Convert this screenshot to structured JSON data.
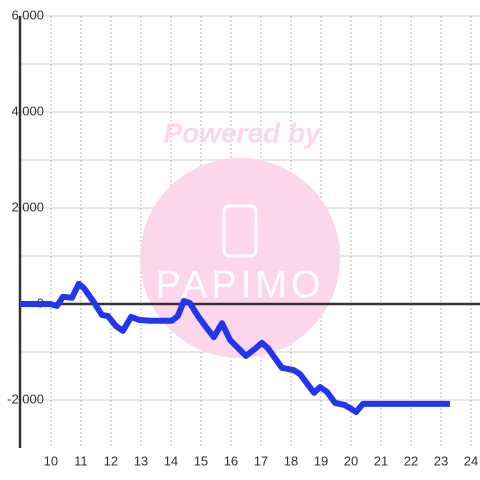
{
  "chart_data": {
    "type": "line",
    "watermark": "Powered by",
    "watermark_logo": "PAPIMO",
    "x": [
      8.97,
      9.97,
      10.2,
      10.4,
      10.7,
      10.93,
      11.1,
      11.43,
      11.7,
      11.9,
      12.17,
      12.4,
      12.67,
      12.93,
      13.3,
      14.03,
      14.23,
      14.43,
      14.63,
      14.9,
      15.17,
      15.43,
      15.7,
      15.97,
      16.5,
      16.83,
      17.03,
      17.23,
      17.7,
      18.1,
      18.3,
      18.77,
      18.97,
      19.2,
      19.47,
      19.77,
      19.97,
      20.17,
      20.4,
      23.3
    ],
    "values": [
      0,
      0,
      -40,
      150,
      130,
      420,
      330,
      40,
      -230,
      -250,
      -460,
      -560,
      -270,
      -330,
      -350,
      -350,
      -250,
      60,
      20,
      -250,
      -480,
      -690,
      -400,
      -750,
      -1080,
      -920,
      -810,
      -920,
      -1330,
      -1380,
      -1460,
      -1850,
      -1730,
      -1830,
      -2060,
      -2100,
      -2170,
      -2250,
      -2080,
      -2080
    ],
    "color": "#2236f0",
    "xlim": [
      8.97,
      24.3
    ],
    "ylim": [
      -3000,
      6000
    ],
    "xticks": [
      10,
      11,
      12,
      13,
      14,
      15,
      16,
      17,
      18,
      19,
      20,
      21,
      22,
      23,
      24
    ],
    "yticks": [
      {
        "value": 6000,
        "label": "6,000"
      },
      {
        "value": 4000,
        "label": "4,000"
      },
      {
        "value": 2000,
        "label": "2,000"
      },
      0,
      {
        "value": -2000,
        "label": "-2,000"
      }
    ],
    "minor_yticks": [
      5000,
      3000,
      1000,
      -1000
    ],
    "grid": true
  }
}
